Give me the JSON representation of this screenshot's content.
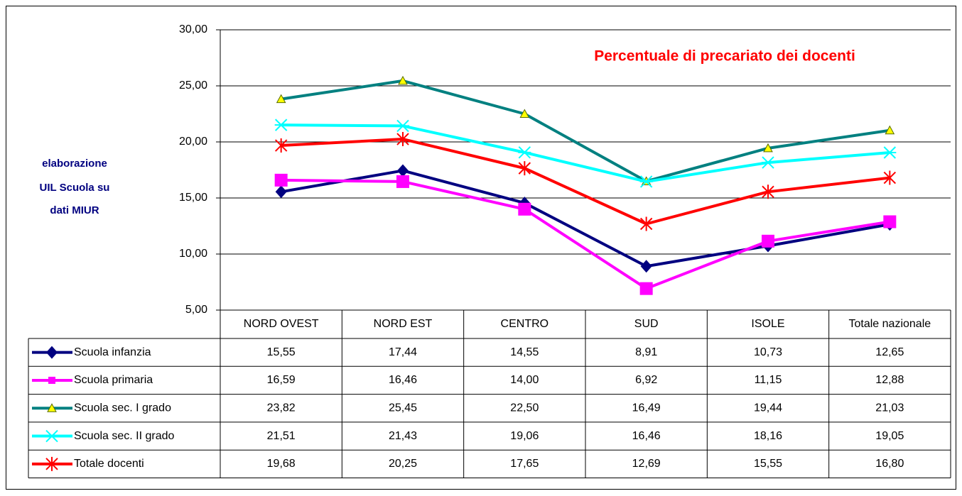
{
  "chart_data": {
    "type": "line",
    "title": "Percentuale di precariato dei docenti",
    "annotation": [
      "elaborazione",
      "UIL Scuola su",
      "dati MIUR"
    ],
    "categories": [
      "NORD OVEST",
      "NORD EST",
      "CENTRO",
      "SUD",
      "ISOLE",
      "Totale nazionale"
    ],
    "ylim": [
      5,
      30
    ],
    "yticks": [
      {
        "value": 5,
        "label": "5,00"
      },
      {
        "value": 10,
        "label": "10,00"
      },
      {
        "value": 15,
        "label": "15,00"
      },
      {
        "value": 20,
        "label": "20,00"
      },
      {
        "value": 25,
        "label": "25,00"
      },
      {
        "value": 30,
        "label": "30,00"
      }
    ],
    "grid": true,
    "series": [
      {
        "name": "Scuola infanzia",
        "color": "#000080",
        "marker": "diamond",
        "values": [
          15.55,
          17.44,
          14.55,
          8.91,
          10.73,
          12.65
        ],
        "value_labels": [
          "15,55",
          "17,44",
          "14,55",
          "8,91",
          "10,73",
          "12,65"
        ]
      },
      {
        "name": "Scuola primaria",
        "color": "#ff00ff",
        "marker": "square",
        "values": [
          16.59,
          16.46,
          14.0,
          6.92,
          11.15,
          12.88
        ],
        "value_labels": [
          "16,59",
          "16,46",
          "14,00",
          "6,92",
          "11,15",
          "12,88"
        ]
      },
      {
        "name": "Scuola sec. I grado",
        "color": "#008080",
        "marker": "triangle",
        "values": [
          23.82,
          25.45,
          22.5,
          16.49,
          19.44,
          21.03
        ],
        "value_labels": [
          "23,82",
          "25,45",
          "22,50",
          "16,49",
          "19,44",
          "21,03"
        ]
      },
      {
        "name": "Scuola sec. II grado",
        "color": "#00ffff",
        "marker": "star",
        "values": [
          21.51,
          21.43,
          19.06,
          16.46,
          18.16,
          19.05
        ],
        "value_labels": [
          "21,51",
          "21,43",
          "19,06",
          "16,46",
          "18,16",
          "19,05"
        ]
      },
      {
        "name": "Totale docenti",
        "color": "#ff0000",
        "marker": "asterisk",
        "values": [
          19.68,
          20.25,
          17.65,
          12.69,
          15.55,
          16.8
        ],
        "value_labels": [
          "19,68",
          "20,25",
          "17,65",
          "12,69",
          "15,55",
          "16,80"
        ]
      }
    ]
  }
}
